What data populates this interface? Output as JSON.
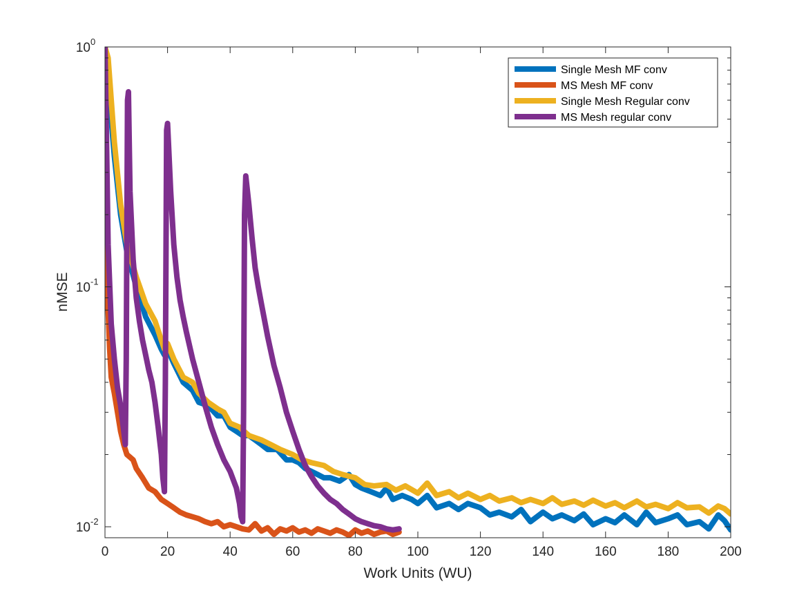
{
  "chart_data": {
    "type": "line",
    "xlabel": "Work Units (WU)",
    "ylabel": "nMSE",
    "xlim": [
      0,
      200
    ],
    "ylim": [
      0.009,
      1
    ],
    "yscale": "log",
    "grid": false,
    "legend_position": "top-right",
    "x_ticks": [
      0,
      20,
      40,
      60,
      80,
      100,
      120,
      140,
      160,
      180,
      200
    ],
    "y_ticks": [
      {
        "value": 0.01,
        "base": "10",
        "exp": "-2"
      },
      {
        "value": 0.1,
        "base": "10",
        "exp": "-1"
      },
      {
        "value": 1,
        "base": "10",
        "exp": "0"
      }
    ],
    "series": [
      {
        "name": "Single Mesh MF conv",
        "color": "#0072BD",
        "x": [
          0,
          1,
          2,
          3,
          5,
          7,
          10,
          13,
          16,
          18,
          19,
          20,
          22,
          25,
          28,
          30,
          33,
          36,
          38,
          40,
          42,
          44,
          46,
          48,
          50,
          52,
          55,
          58,
          60,
          62,
          64,
          66,
          68,
          70,
          72,
          75,
          78,
          80,
          82,
          85,
          88,
          90,
          92,
          95,
          98,
          100,
          103,
          106,
          110,
          113,
          116,
          120,
          123,
          126,
          130,
          133,
          136,
          140,
          143,
          146,
          150,
          153,
          156,
          160,
          163,
          166,
          170,
          173,
          176,
          180,
          183,
          186,
          190,
          193,
          196,
          198,
          200
        ],
        "values": [
          0.95,
          0.7,
          0.5,
          0.35,
          0.2,
          0.14,
          0.1,
          0.075,
          0.063,
          0.055,
          0.052,
          0.055,
          0.048,
          0.04,
          0.037,
          0.033,
          0.032,
          0.029,
          0.029,
          0.026,
          0.025,
          0.024,
          0.024,
          0.023,
          0.022,
          0.021,
          0.021,
          0.019,
          0.019,
          0.0185,
          0.0175,
          0.017,
          0.0165,
          0.016,
          0.016,
          0.0155,
          0.0165,
          0.015,
          0.0145,
          0.014,
          0.0135,
          0.0145,
          0.013,
          0.0135,
          0.013,
          0.0125,
          0.0135,
          0.012,
          0.0125,
          0.0118,
          0.0125,
          0.012,
          0.0112,
          0.0115,
          0.011,
          0.0118,
          0.0105,
          0.0115,
          0.0108,
          0.0112,
          0.0106,
          0.0113,
          0.0102,
          0.0108,
          0.0104,
          0.0112,
          0.0102,
          0.0115,
          0.0104,
          0.0108,
          0.0112,
          0.0102,
          0.0105,
          0.0098,
          0.0112,
          0.0106,
          0.0097
        ]
      },
      {
        "name": "MS Mesh MF conv",
        "color": "#D95319",
        "x": [
          0,
          0.5,
          1,
          1.5,
          2,
          3,
          4,
          5,
          6,
          7,
          8,
          9,
          10,
          12,
          14,
          16,
          18,
          20,
          22,
          24,
          26,
          28,
          30,
          32,
          34,
          36,
          38,
          40,
          42,
          44,
          46,
          48,
          50,
          52,
          54,
          56,
          58,
          60,
          62,
          64,
          66,
          68,
          70,
          72,
          74,
          76,
          78,
          80,
          82,
          84,
          86,
          88,
          90,
          92,
          94
        ],
        "values": [
          0.18,
          0.12,
          0.08,
          0.055,
          0.042,
          0.036,
          0.03,
          0.025,
          0.022,
          0.02,
          0.0195,
          0.019,
          0.0175,
          0.016,
          0.0145,
          0.014,
          0.013,
          0.0125,
          0.012,
          0.0115,
          0.0112,
          0.011,
          0.0108,
          0.0105,
          0.0103,
          0.0105,
          0.01,
          0.0102,
          0.01,
          0.0098,
          0.0097,
          0.0103,
          0.0096,
          0.0099,
          0.0093,
          0.0098,
          0.0096,
          0.0099,
          0.0095,
          0.0097,
          0.0094,
          0.0098,
          0.0096,
          0.0094,
          0.0097,
          0.0095,
          0.0092,
          0.0097,
          0.0094,
          0.0096,
          0.0093,
          0.0095,
          0.0096,
          0.0093,
          0.0095
        ]
      },
      {
        "name": "Single Mesh Regular conv",
        "color": "#EDB120",
        "x": [
          0,
          1,
          2,
          3,
          5,
          7,
          10,
          13,
          16,
          18,
          19,
          20,
          22,
          25,
          28,
          30,
          33,
          36,
          38,
          40,
          43,
          46,
          50,
          53,
          56,
          60,
          63,
          66,
          70,
          73,
          76,
          80,
          83,
          86,
          90,
          93,
          96,
          100,
          103,
          106,
          110,
          113,
          116,
          120,
          123,
          126,
          130,
          133,
          136,
          140,
          143,
          146,
          150,
          153,
          156,
          160,
          163,
          166,
          170,
          173,
          176,
          180,
          183,
          186,
          190,
          193,
          196,
          198,
          200
        ],
        "values": [
          1,
          0.9,
          0.6,
          0.4,
          0.22,
          0.15,
          0.11,
          0.085,
          0.072,
          0.06,
          0.055,
          0.058,
          0.05,
          0.042,
          0.04,
          0.036,
          0.033,
          0.031,
          0.03,
          0.027,
          0.026,
          0.024,
          0.023,
          0.022,
          0.021,
          0.02,
          0.019,
          0.0185,
          0.018,
          0.017,
          0.0165,
          0.016,
          0.015,
          0.0148,
          0.015,
          0.0142,
          0.0148,
          0.0138,
          0.0152,
          0.0135,
          0.014,
          0.0132,
          0.0138,
          0.013,
          0.0135,
          0.0128,
          0.0132,
          0.0126,
          0.013,
          0.0125,
          0.0132,
          0.0124,
          0.0128,
          0.0123,
          0.0129,
          0.0122,
          0.0126,
          0.012,
          0.0128,
          0.0121,
          0.0124,
          0.0119,
          0.0126,
          0.012,
          0.0121,
          0.0114,
          0.0122,
          0.0119,
          0.0113
        ]
      },
      {
        "name": "MS Mesh regular conv",
        "color": "#7E2F8E",
        "x": [
          0,
          0.5,
          1,
          2,
          3,
          4,
          5,
          6,
          6.5,
          6.8,
          7.2,
          7.5,
          8,
          9,
          10,
          11,
          12,
          13,
          14,
          15,
          16,
          17,
          18,
          18.5,
          19,
          19.3,
          19.7,
          20,
          21,
          22,
          23,
          24,
          25,
          26,
          28,
          30,
          32,
          34,
          36,
          38,
          40,
          42,
          43,
          43.5,
          44,
          44.3,
          44.6,
          45,
          46,
          47,
          48,
          49,
          50,
          52,
          54,
          56,
          58,
          60,
          62,
          64,
          66,
          68,
          70,
          72,
          74,
          76,
          78,
          80,
          82,
          84,
          86,
          88,
          90,
          92,
          94
        ],
        "values": [
          1,
          0.4,
          0.15,
          0.07,
          0.05,
          0.038,
          0.032,
          0.025,
          0.022,
          0.05,
          0.6,
          0.65,
          0.25,
          0.13,
          0.09,
          0.072,
          0.06,
          0.052,
          0.045,
          0.04,
          0.033,
          0.026,
          0.02,
          0.016,
          0.014,
          0.04,
          0.45,
          0.48,
          0.25,
          0.15,
          0.11,
          0.088,
          0.075,
          0.065,
          0.05,
          0.04,
          0.032,
          0.026,
          0.022,
          0.019,
          0.017,
          0.0145,
          0.0125,
          0.011,
          0.0105,
          0.03,
          0.2,
          0.29,
          0.22,
          0.16,
          0.12,
          0.1,
          0.085,
          0.062,
          0.047,
          0.038,
          0.03,
          0.025,
          0.021,
          0.018,
          0.0162,
          0.0148,
          0.0138,
          0.013,
          0.0125,
          0.0118,
          0.0113,
          0.0108,
          0.0105,
          0.0103,
          0.0101,
          0.01,
          0.0098,
          0.0097,
          0.0098
        ]
      }
    ]
  }
}
